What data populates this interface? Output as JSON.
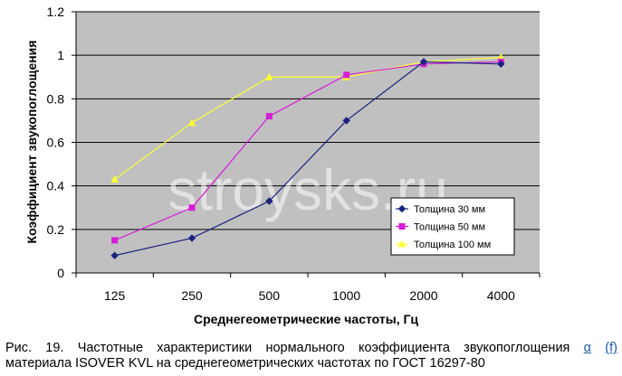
{
  "chart_data": {
    "type": "line",
    "categories": [
      "125",
      "250",
      "500",
      "1000",
      "2000",
      "4000"
    ],
    "series": [
      {
        "name": "Толщина 30 мм",
        "values": [
          0.08,
          0.16,
          0.33,
          0.7,
          0.97,
          0.96
        ],
        "color": "#1a237e",
        "marker": "diamond"
      },
      {
        "name": "Толщина 50 мм",
        "values": [
          0.15,
          0.3,
          0.72,
          0.91,
          0.96,
          0.97
        ],
        "color": "#d81bd8",
        "marker": "square"
      },
      {
        "name": "Толщина 100 мм",
        "values": [
          0.43,
          0.69,
          0.9,
          0.9,
          0.97,
          0.99
        ],
        "color": "#ffff33",
        "marker": "triangle"
      }
    ],
    "xlabel": "Среднегеометрические частоты, Гц",
    "ylabel": "Коэффициент звукопоглощения",
    "ylim": [
      0,
      1.2
    ],
    "yticks": [
      "0",
      "0.2",
      "0.4",
      "0.6",
      "0.8",
      "1",
      "1.2"
    ],
    "grid": true,
    "legend_position": "bottom-right",
    "plot_background": "#c0c0c0",
    "watermark": "stroysks.ru"
  },
  "caption": {
    "line1": [
      "Рис.",
      "19.",
      "Частотные",
      "характеристики",
      "нормального",
      "коэффициента",
      "звукопоглощения"
    ],
    "symbol": "α",
    "arg": "(f)",
    "line2": "материала ISOVER KVL на среднегеометрических частотах по ГОСТ 16297-80"
  }
}
